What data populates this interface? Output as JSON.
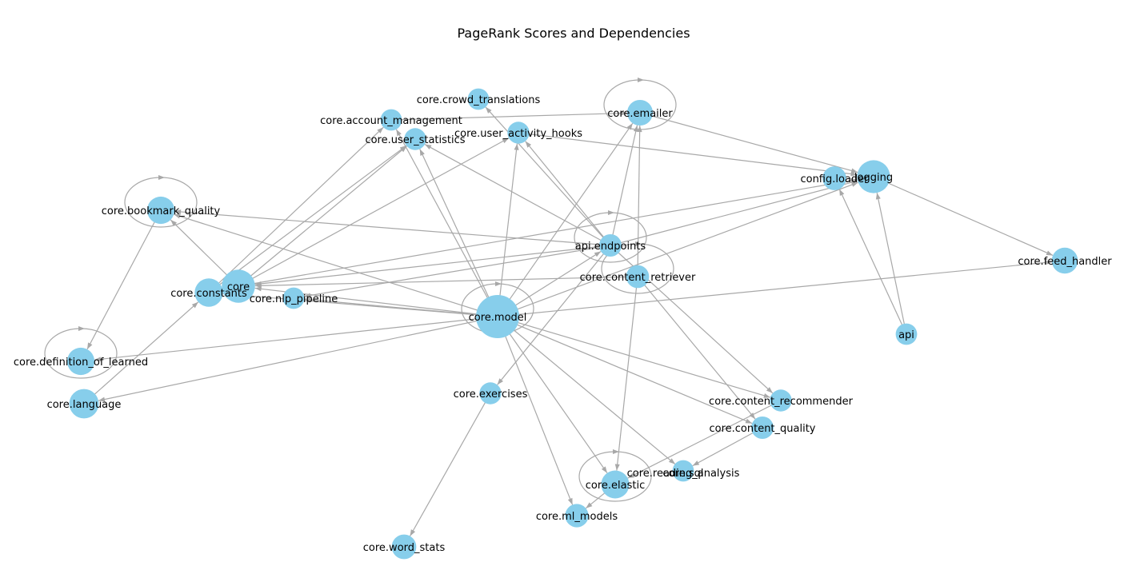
{
  "title": "PageRank Scores and Dependencies",
  "colors": {
    "node": "#87ceeb",
    "edge": "#a8a8a8",
    "background": "#ffffff"
  },
  "nodes": [
    {
      "id": "core.model",
      "label": "core.model",
      "rank": 1.0
    },
    {
      "id": "core",
      "label": "core",
      "rank": 0.45
    },
    {
      "id": "logging",
      "label": "logging",
      "rank": 0.44
    },
    {
      "id": "core.language",
      "label": "core.language",
      "rank": 0.3
    },
    {
      "id": "core.constants",
      "label": "core.constants",
      "rank": 0.26
    },
    {
      "id": "core.elastic",
      "label": "core.elastic",
      "rank": 0.25
    },
    {
      "id": "core.definition_of_learned",
      "label": "core.definition_of_learned",
      "rank": 0.23
    },
    {
      "id": "core.bookmark_quality",
      "label": "core.bookmark_quality",
      "rank": 0.23
    },
    {
      "id": "core.feed_handler",
      "label": "core.feed_handler",
      "rank": 0.19
    },
    {
      "id": "core.emailer",
      "label": "core.emailer",
      "rank": 0.18
    },
    {
      "id": "core.word_stats",
      "label": "core.word_stats",
      "rank": 0.15
    },
    {
      "id": "config.loader",
      "label": "config.loader",
      "rank": 0.13
    },
    {
      "id": "core.ml_models",
      "label": "core.ml_models",
      "rank": 0.12
    },
    {
      "id": "core.content_retriever",
      "label": "core.content_retriever",
      "rank": 0.11
    },
    {
      "id": "core.content_quality",
      "label": "core.content_quality",
      "rank": 0.1
    },
    {
      "id": "api.endpoints",
      "label": "api.endpoints",
      "rank": 0.1
    },
    {
      "id": "core.exercises",
      "label": "core.exercises",
      "rank": 0.09
    },
    {
      "id": "core.user_activity_hooks",
      "label": "core.user_activity_hooks",
      "rank": 0.09
    },
    {
      "id": "core.user_statistics",
      "label": "core.user_statistics",
      "rank": 0.09
    },
    {
      "id": "core.content_recommender",
      "label": "core.content_recommender",
      "rank": 0.09
    },
    {
      "id": "core.reading_analysis",
      "label": "core.reading_analysis",
      "rank": 0.08
    },
    {
      "id": "core.sql",
      "label": "core.sql",
      "rank": 0.07
    },
    {
      "id": "api",
      "label": "api",
      "rank": 0.08
    },
    {
      "id": "core.crowd_translations",
      "label": "core.crowd_translations",
      "rank": 0.08
    },
    {
      "id": "core.account_management",
      "label": "core.account_management",
      "rank": 0.08
    },
    {
      "id": "core.nlp_pipeline",
      "label": "core.nlp_pipeline",
      "rank": 0.08
    }
  ],
  "edges": [
    [
      "core.model",
      "core.emailer"
    ],
    [
      "core.model",
      "core.user_statistics"
    ],
    [
      "core.model",
      "core.user_activity_hooks"
    ],
    [
      "core.model",
      "core.account_management"
    ],
    [
      "core.model",
      "core.bookmark_quality"
    ],
    [
      "core.model",
      "core.definition_of_learned"
    ],
    [
      "core.model",
      "core.language"
    ],
    [
      "core.model",
      "core.constants"
    ],
    [
      "core.model",
      "core"
    ],
    [
      "core.model",
      "core.nlp_pipeline"
    ],
    [
      "core.model",
      "core.content_recommender"
    ],
    [
      "core.model",
      "core.content_quality"
    ],
    [
      "core.model",
      "core.elastic"
    ],
    [
      "core.model",
      "core.ml_models"
    ],
    [
      "core.model",
      "core.sql"
    ],
    [
      "core.model",
      "core.feed_handler"
    ],
    [
      "core.model",
      "logging"
    ],
    [
      "core.model",
      "api.endpoints"
    ],
    [
      "core.model",
      "core.model"
    ],
    [
      "api.endpoints",
      "core.crowd_translations"
    ],
    [
      "api.endpoints",
      "core.user_activity_hooks"
    ],
    [
      "api.endpoints",
      "core.user_statistics"
    ],
    [
      "api.endpoints",
      "core.emailer"
    ],
    [
      "api.endpoints",
      "core.exercises"
    ],
    [
      "api.endpoints",
      "core.bookmark_quality"
    ],
    [
      "api.endpoints",
      "core"
    ],
    [
      "api.endpoints",
      "core.nlp_pipeline"
    ],
    [
      "api.endpoints",
      "core.content_recommender"
    ],
    [
      "api.endpoints",
      "logging"
    ],
    [
      "api.endpoints",
      "api.endpoints"
    ],
    [
      "core.content_retriever",
      "core.emailer"
    ],
    [
      "core.content_retriever",
      "core.elastic"
    ],
    [
      "core.content_retriever",
      "core.content_quality"
    ],
    [
      "core.content_retriever",
      "core"
    ],
    [
      "core.content_retriever",
      "core.content_retriever"
    ],
    [
      "core.emailer",
      "logging"
    ],
    [
      "core.emailer",
      "core.emailer"
    ],
    [
      "core.account_management",
      "core.emailer"
    ],
    [
      "core.user_activity_hooks",
      "logging"
    ],
    [
      "core",
      "core.user_statistics"
    ],
    [
      "core",
      "core.user_activity_hooks"
    ],
    [
      "core",
      "core.bookmark_quality"
    ],
    [
      "core",
      "logging"
    ],
    [
      "core.constants",
      "core.user_statistics"
    ],
    [
      "core.constants",
      "core.account_management"
    ],
    [
      "core.language",
      "core.constants"
    ],
    [
      "core.bookmark_quality",
      "core.definition_of_learned"
    ],
    [
      "core.bookmark_quality",
      "core.bookmark_quality"
    ],
    [
      "core.definition_of_learned",
      "core.definition_of_learned"
    ],
    [
      "core.exercises",
      "core.word_stats"
    ],
    [
      "core.content_quality",
      "core.reading_analysis"
    ],
    [
      "core.content_recommender",
      "core.elastic"
    ],
    [
      "core.elastic",
      "core.ml_models"
    ],
    [
      "core.elastic",
      "core.elastic"
    ],
    [
      "api",
      "logging"
    ],
    [
      "api",
      "config.loader"
    ],
    [
      "logging",
      "core.feed_handler"
    ]
  ]
}
